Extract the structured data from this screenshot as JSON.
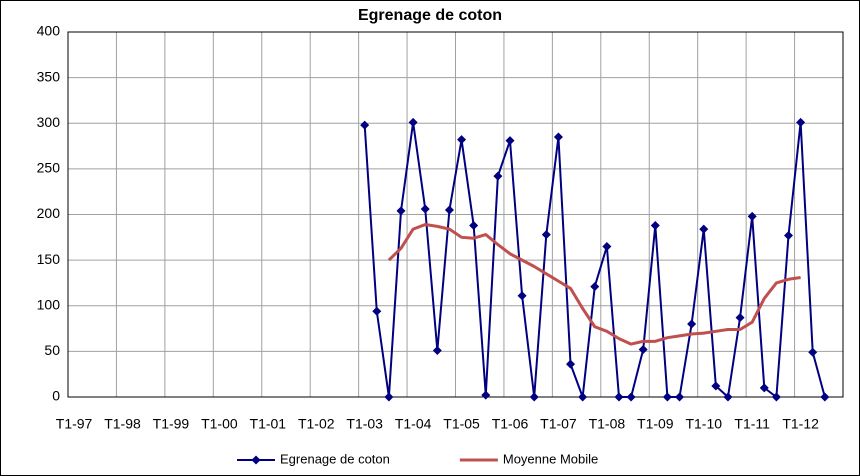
{
  "chart_data": {
    "type": "line",
    "title": "Egrenage de coton",
    "categories": [
      "T1-97",
      null,
      null,
      null,
      "T1-98",
      null,
      null,
      null,
      "T1-99",
      null,
      null,
      null,
      "T1-00",
      null,
      null,
      null,
      "T1-01",
      null,
      null,
      null,
      "T1-02",
      null,
      null,
      null,
      "T1-03",
      null,
      null,
      null,
      "T1-04",
      null,
      null,
      null,
      "T1-05",
      null,
      null,
      null,
      "T1-06",
      null,
      null,
      null,
      "T1-07",
      null,
      null,
      null,
      "T1-08",
      null,
      null,
      null,
      "T1-09",
      null,
      null,
      null,
      "T1-10",
      null,
      null,
      null,
      "T1-11",
      null,
      null,
      null,
      "T1-12",
      null,
      null,
      null
    ],
    "series": [
      {
        "name": "Egrenage de coton",
        "color": "#000080",
        "marker": "diamond",
        "values": [
          null,
          null,
          null,
          null,
          null,
          null,
          null,
          null,
          null,
          null,
          null,
          null,
          null,
          null,
          null,
          null,
          null,
          null,
          null,
          null,
          null,
          null,
          null,
          null,
          298,
          94,
          0,
          204,
          301,
          206,
          51,
          205,
          282,
          188,
          2,
          242,
          281,
          111,
          0,
          178,
          285,
          36,
          0,
          121,
          165,
          0,
          0,
          52,
          188,
          0,
          0,
          80,
          184,
          12,
          0,
          87,
          198,
          10,
          0,
          177,
          301,
          49,
          0,
          null
        ]
      },
      {
        "name": "Moyenne Mobile",
        "color": "#c0504d",
        "values": [
          null,
          null,
          null,
          null,
          null,
          null,
          null,
          null,
          null,
          null,
          null,
          null,
          null,
          null,
          null,
          null,
          null,
          null,
          null,
          null,
          null,
          null,
          null,
          null,
          null,
          null,
          150,
          163,
          184,
          189,
          187,
          184,
          175,
          174,
          178,
          167,
          157,
          150,
          143,
          135,
          127,
          119,
          97,
          77,
          72,
          64,
          58,
          61,
          61,
          65,
          67,
          69,
          70,
          72,
          74,
          74,
          82,
          108,
          125,
          129,
          131,
          null,
          null,
          null
        ]
      }
    ],
    "ylim": [
      0,
      400
    ],
    "yticks": [
      0,
      50,
      100,
      150,
      200,
      250,
      300,
      350,
      400
    ],
    "grid": true,
    "legend": "bottom"
  }
}
